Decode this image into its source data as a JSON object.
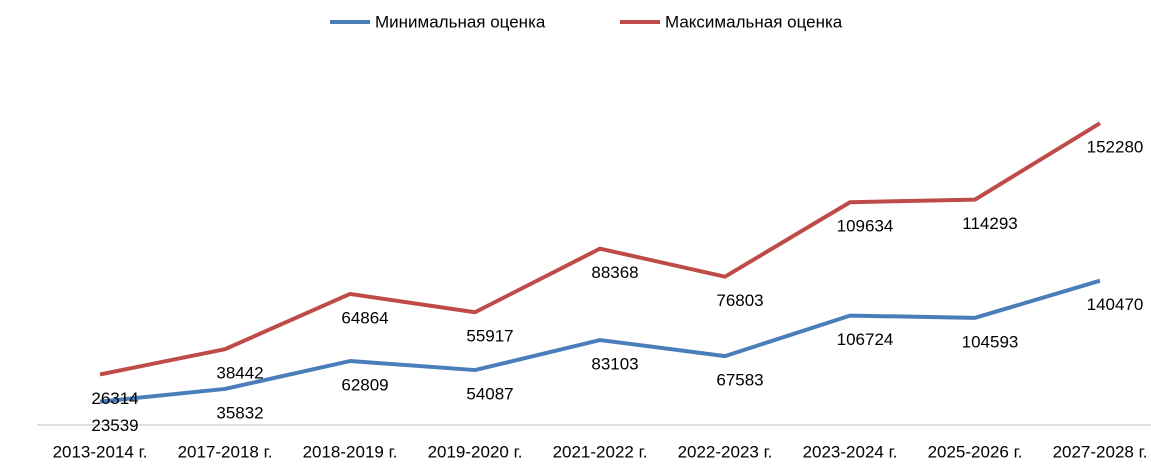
{
  "chart_data": {
    "type": "line",
    "stacked": true,
    "categories": [
      "2013-2014 г.",
      "2017-2018 г.",
      "2018-2019 г.",
      "2019-2020 г.",
      "2021-2022 г.",
      "2022-2023 г.",
      "2023-2024 г.",
      "2025-2026 г.",
      "2027-2028 г."
    ],
    "series": [
      {
        "name": "Минимальная оценка",
        "color": "#4a7ebb",
        "values": [
          23539,
          35832,
          62809,
          54087,
          83103,
          67583,
          106724,
          104593,
          140470
        ]
      },
      {
        "name": "Максимальная оценка",
        "color": "#be4b48",
        "values": [
          26314,
          38442,
          64864,
          55917,
          88368,
          76803,
          109634,
          114293,
          152280
        ]
      }
    ],
    "ylim": [
      0,
      350000
    ],
    "grid": false,
    "legend": "top"
  }
}
